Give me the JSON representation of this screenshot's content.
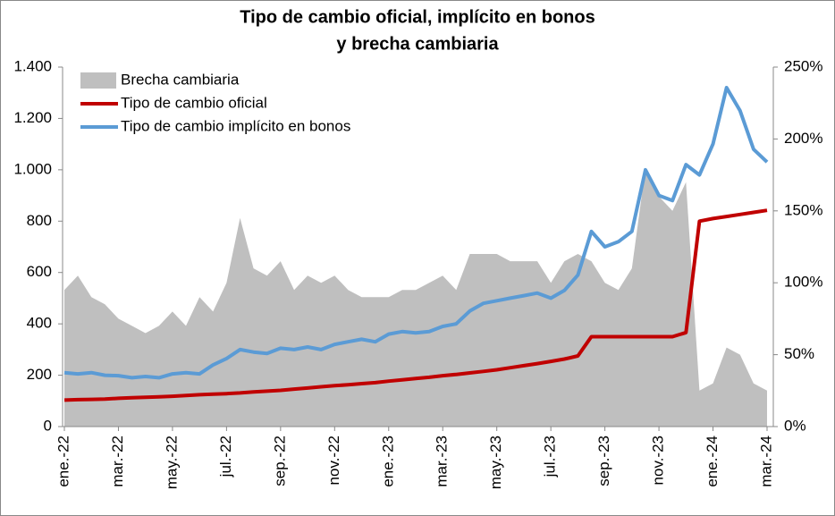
{
  "chart_data": {
    "type": "line",
    "title": "Tipo de cambio oficial, implícito en bonos",
    "subtitle": "y brecha cambiaria",
    "categories": [
      "ene.-22",
      null,
      null,
      null,
      "mar.-22",
      null,
      null,
      null,
      "may.-22",
      null,
      null,
      null,
      "jul.-22",
      null,
      null,
      null,
      "sep.-22",
      null,
      null,
      null,
      "nov.-22",
      null,
      null,
      null,
      "ene.-23",
      null,
      null,
      null,
      "mar.-23",
      null,
      null,
      null,
      "may.-23",
      null,
      null,
      null,
      "jul.-23",
      null,
      null,
      null,
      "sep.-23",
      null,
      null,
      null,
      "nov.-23",
      null,
      null,
      null,
      "ene.-24",
      null,
      null,
      null,
      "mar.-24"
    ],
    "series": [
      {
        "name": "Brecha cambiaria",
        "color": "#bfbfbf",
        "axis": "y2",
        "area": true,
        "values": [
          95,
          105,
          90,
          85,
          75,
          70,
          65,
          70,
          80,
          70,
          90,
          80,
          100,
          145,
          110,
          105,
          115,
          95,
          105,
          100,
          105,
          95,
          90,
          90,
          90,
          95,
          95,
          100,
          105,
          95,
          120,
          120,
          120,
          115,
          115,
          115,
          100,
          115,
          120,
          115,
          100,
          95,
          110,
          180,
          160,
          150,
          170,
          25,
          30,
          55,
          50,
          30,
          25
        ]
      },
      {
        "name": "Tipo de cambio oficial",
        "color": "#c00000",
        "values": [
          103,
          105,
          106,
          107,
          110,
          112,
          114,
          116,
          118,
          121,
          124,
          126,
          128,
          131,
          135,
          138,
          141,
          146,
          150,
          155,
          159,
          163,
          167,
          171,
          177,
          182,
          187,
          192,
          198,
          203,
          209,
          215,
          221,
          229,
          237,
          245,
          254,
          263,
          275,
          350,
          350,
          350,
          350,
          350,
          350,
          350,
          366,
          800,
          810,
          818,
          826,
          834,
          842
        ]
      },
      {
        "name": "Tipo de cambio implícito en bonos",
        "color": "#5b9bd5",
        "values": [
          210,
          205,
          210,
          200,
          198,
          190,
          195,
          190,
          205,
          210,
          205,
          240,
          265,
          300,
          290,
          285,
          305,
          300,
          310,
          300,
          320,
          330,
          340,
          330,
          360,
          370,
          365,
          370,
          390,
          400,
          450,
          480,
          490,
          500,
          510,
          520,
          500,
          530,
          590,
          760,
          700,
          720,
          760,
          1000,
          900,
          880,
          1020,
          980,
          1100,
          1320,
          1230,
          1080,
          1030
        ]
      }
    ],
    "ylim": [
      0,
      1400
    ],
    "yticks": [
      0,
      200,
      400,
      600,
      {
        "value": 800,
        "label": "800"
      },
      {
        "value": 1000,
        "label": "1.000"
      },
      {
        "value": 1200,
        "label": "1.200"
      },
      {
        "value": 1400,
        "label": "1.400"
      }
    ],
    "y2lim": [
      0,
      250
    ],
    "y2ticks": [
      {
        "value": 0,
        "label": "0%"
      },
      {
        "value": 50,
        "label": "50%"
      },
      {
        "value": 100,
        "label": "100%"
      },
      {
        "value": 150,
        "label": "150%"
      },
      {
        "value": 200,
        "label": "200%"
      },
      {
        "value": 250,
        "label": "250%"
      }
    ],
    "grid": false,
    "legend": "top-left"
  }
}
